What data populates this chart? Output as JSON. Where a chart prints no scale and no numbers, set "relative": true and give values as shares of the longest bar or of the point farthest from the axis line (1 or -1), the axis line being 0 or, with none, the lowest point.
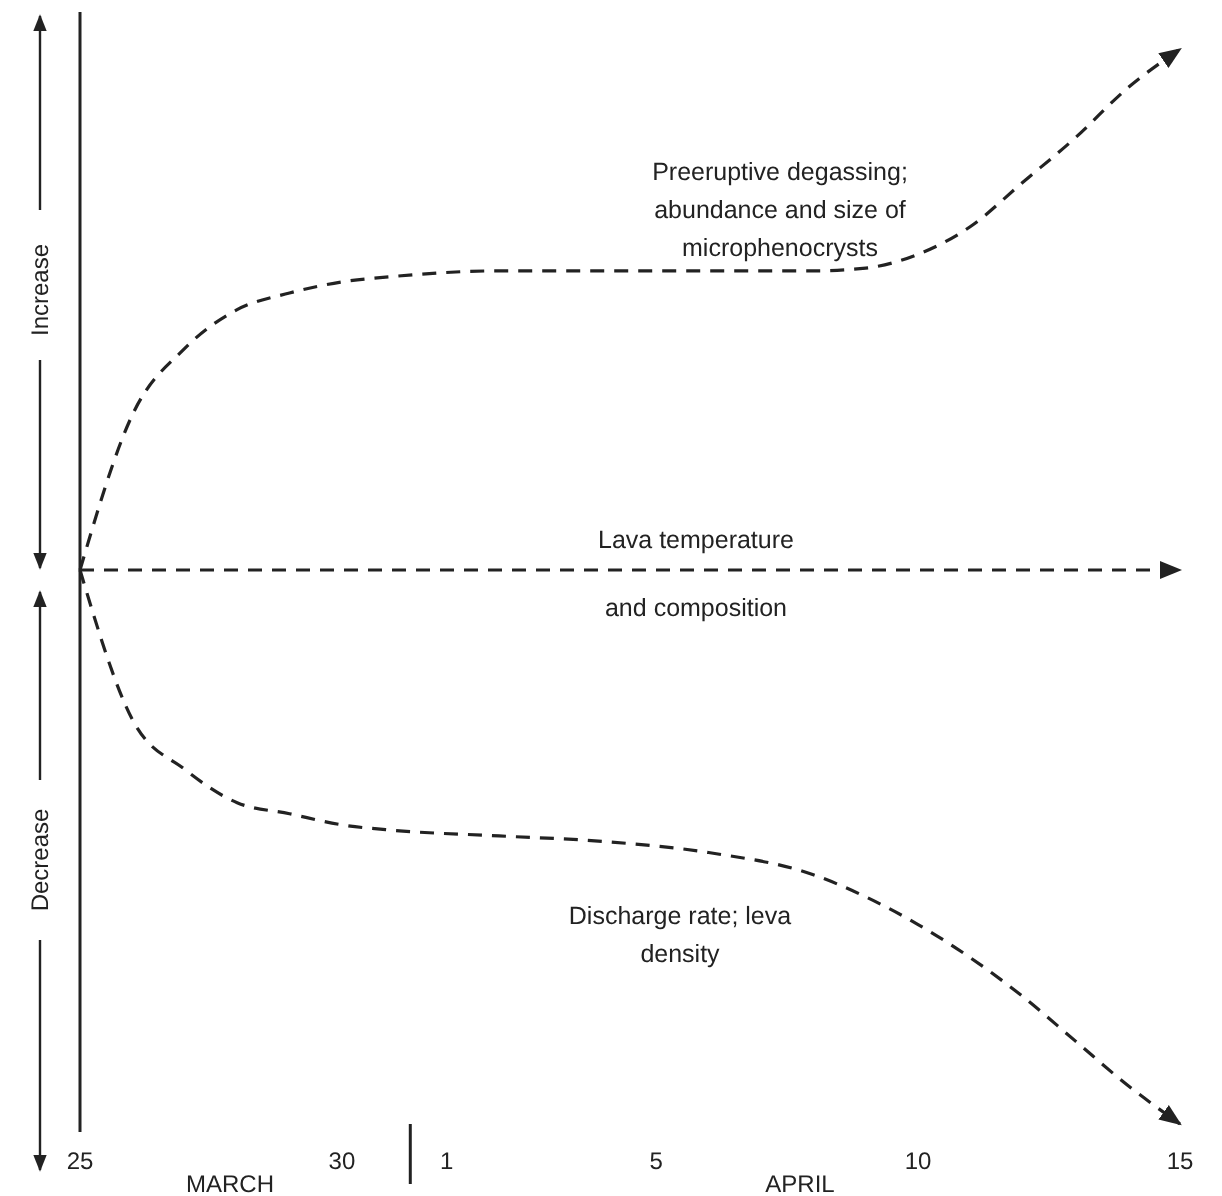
{
  "chart_data": {
    "type": "line",
    "relative": true,
    "line_style": "dashed",
    "marker": "none",
    "xlim": [
      "--03-25",
      "--04-15"
    ],
    "xticks": [
      {
        "value": "--03-25",
        "label": "25"
      },
      {
        "value": "--03-30",
        "label": "30"
      },
      {
        "value": "--04-01",
        "label": "1"
      },
      {
        "value": "--04-05",
        "label": "5"
      },
      {
        "value": "--04-10",
        "label": "10"
      },
      {
        "value": "--04-15",
        "label": "15"
      }
    ],
    "annotations": [
      "Increase",
      "Decrease",
      "MARCH",
      "APRIL"
    ],
    "series": [
      {
        "name": "Preeruptive degassing; abundance and size of microphenocrysts",
        "color": "#222222",
        "x": [
          "--03-25",
          "--03-26",
          "--03-27",
          "--03-28",
          "--03-29",
          "--03-30",
          "--03-31",
          "--04-02",
          "--04-04",
          "--04-06",
          "--04-08",
          "--04-09",
          "--04-10",
          "--04-11",
          "--04-12",
          "--04-13",
          "--04-14",
          "--04-15"
        ],
        "values": [
          0,
          0.28,
          0.4,
          0.47,
          0.5,
          0.52,
          0.53,
          0.54,
          0.54,
          0.54,
          0.54,
          0.545,
          0.57,
          0.62,
          0.7,
          0.78,
          0.87,
          0.94
        ]
      },
      {
        "name": "Lava temperature and composition",
        "color": "#222222",
        "x": [
          "--03-25",
          "--04-15"
        ],
        "values": [
          0,
          0
        ]
      },
      {
        "name": "Discharge rate; leva density",
        "color": "#222222",
        "x": [
          "--03-25",
          "--03-26",
          "--03-27",
          "--03-28",
          "--03-29",
          "--03-30",
          "--03-31",
          "--04-02",
          "--04-04",
          "--04-06",
          "--04-08",
          "--04-09",
          "--04-10",
          "--04-11",
          "--04-12",
          "--04-13",
          "--04-14",
          "--04-15"
        ],
        "values": [
          0,
          -0.27,
          -0.36,
          -0.42,
          -0.44,
          -0.46,
          -0.47,
          -0.48,
          -0.49,
          -0.51,
          -0.55,
          -0.59,
          -0.64,
          -0.7,
          -0.77,
          -0.85,
          -0.93,
          -1
        ]
      }
    ]
  }
}
